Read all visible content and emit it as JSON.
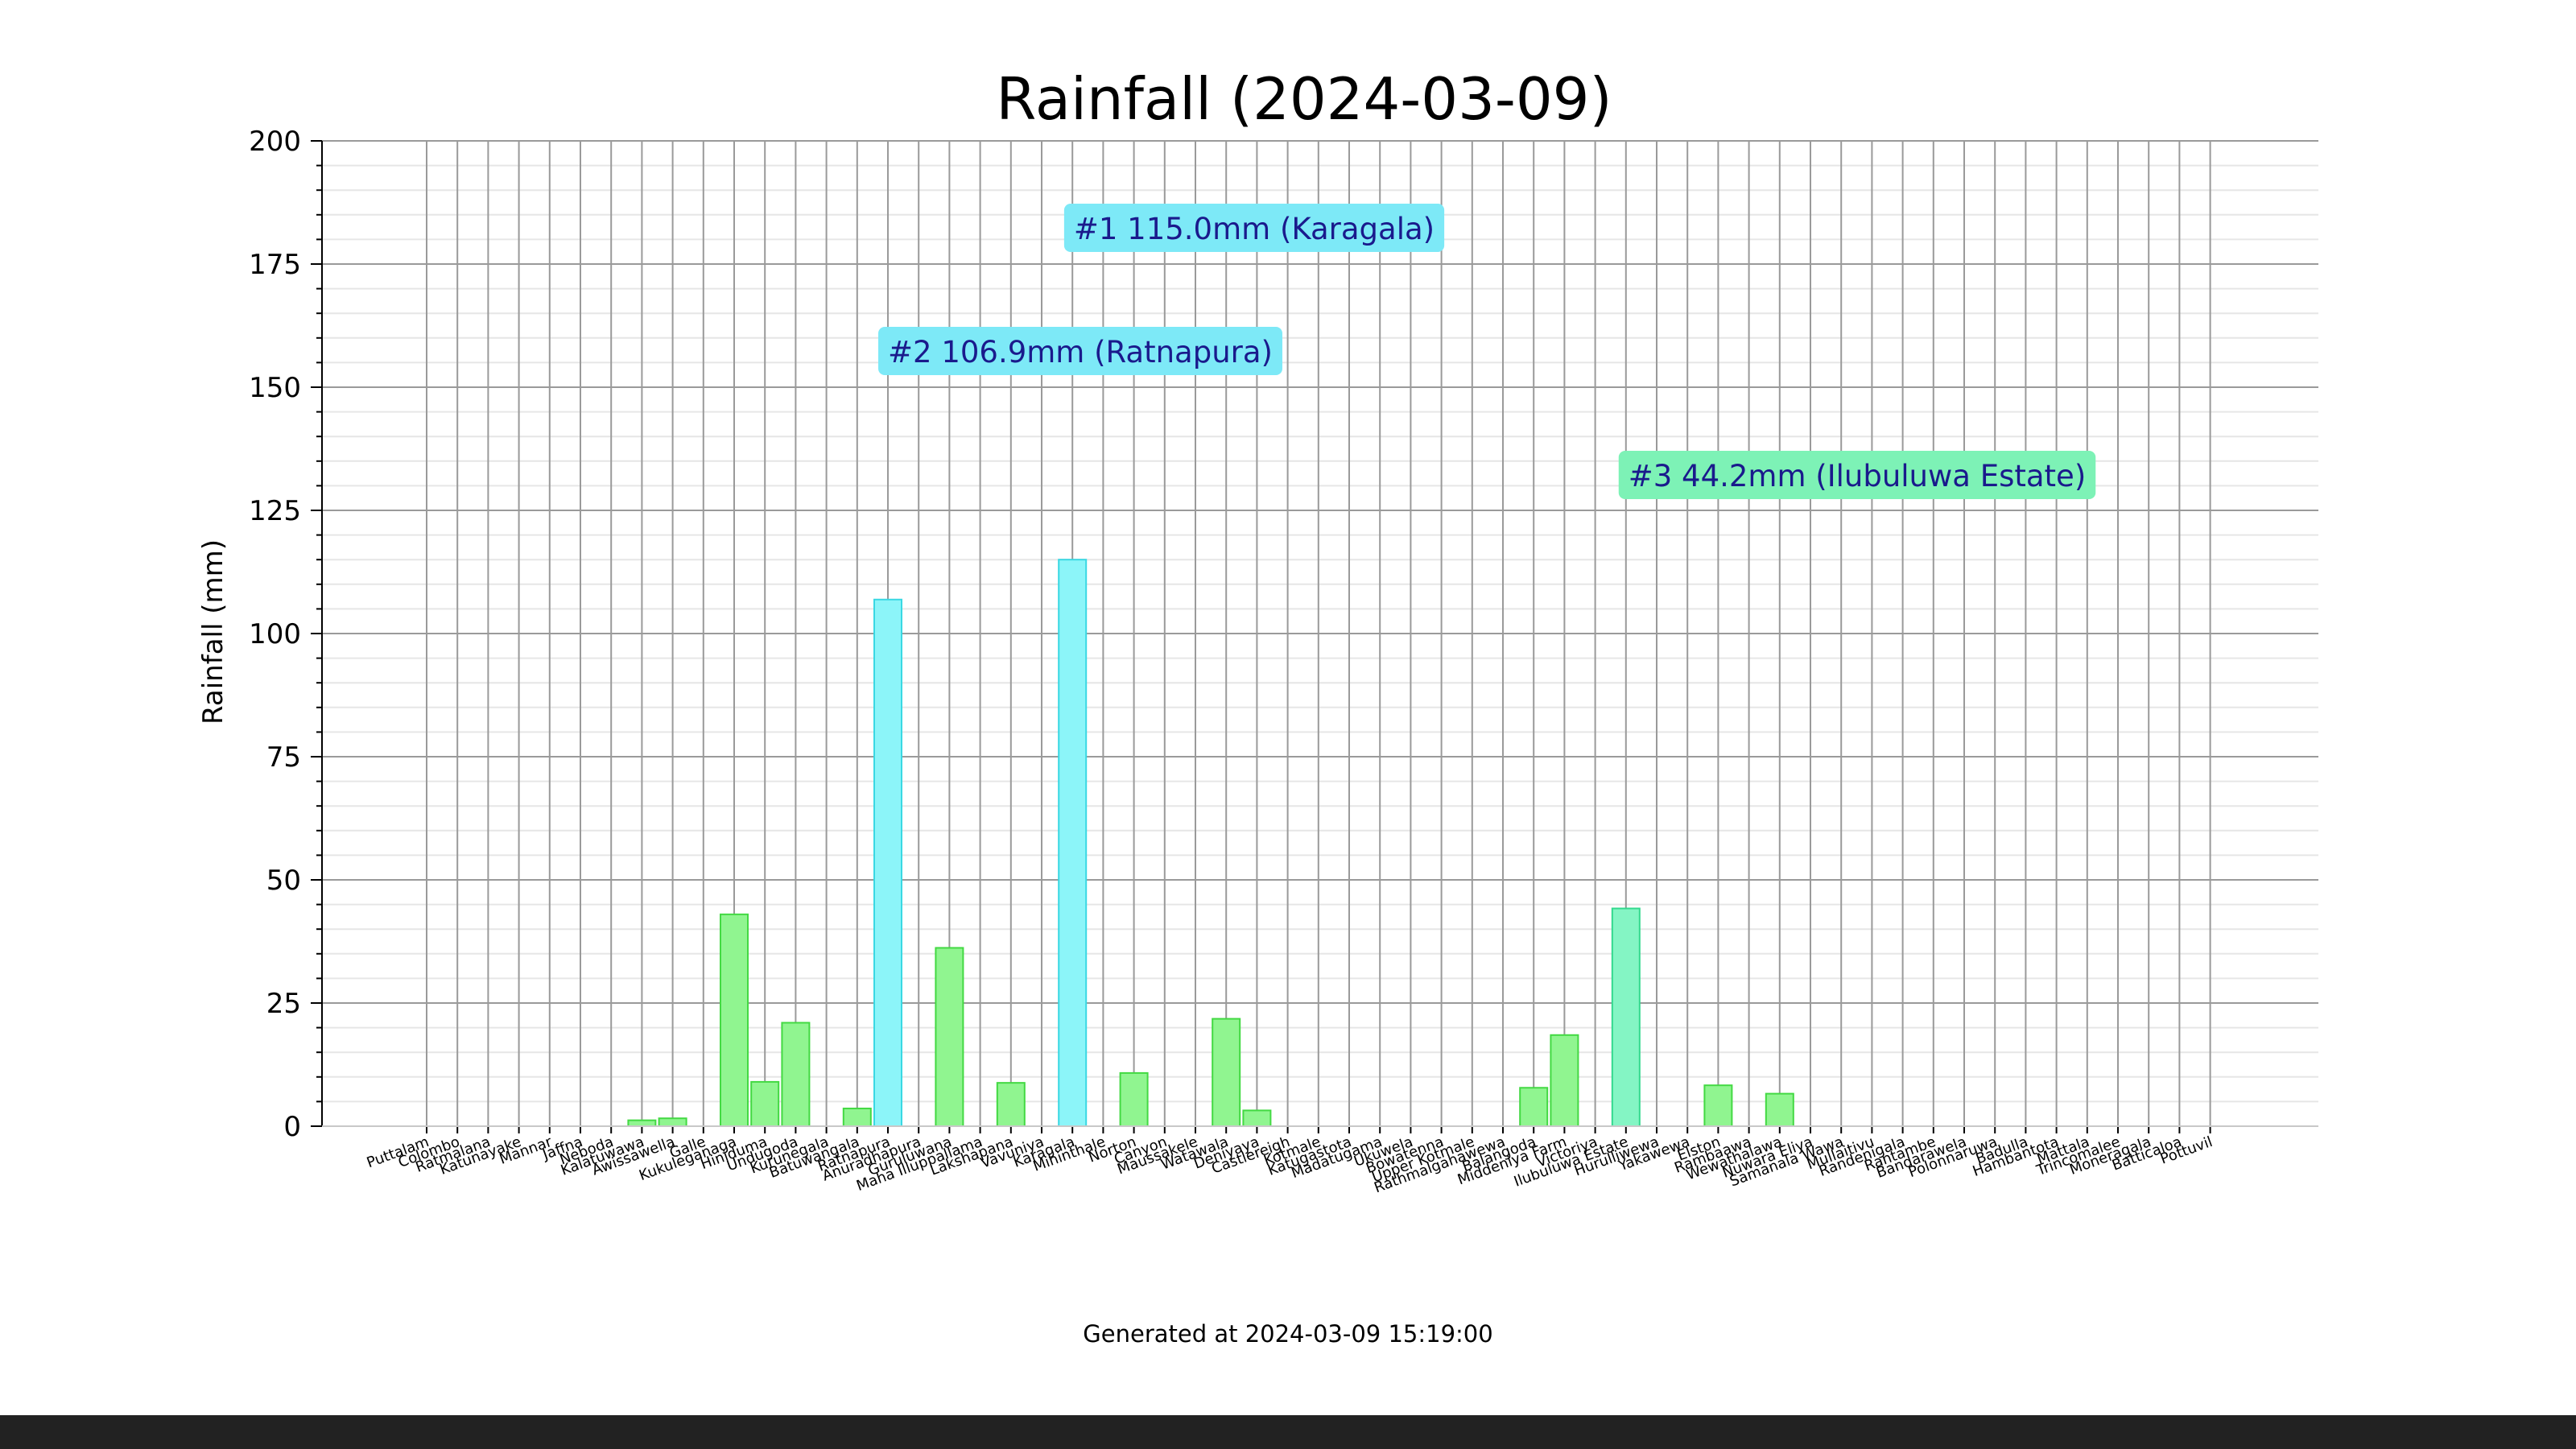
{
  "chart_data": {
    "type": "bar",
    "title": "Rainfall (2024-03-09)",
    "xlabel": "",
    "ylabel": "Rainfall (mm)",
    "ylim": [
      0,
      200
    ],
    "yticks": [
      0,
      25,
      50,
      75,
      100,
      125,
      150,
      175,
      200
    ],
    "grid": true,
    "footer": "Generated at 2024-03-09 15:19:00",
    "categories": [
      "Puttalam",
      "Colombo",
      "Ratmalana",
      "Katunayake",
      "Mannar",
      "Jaffna",
      "Neboda",
      "Kalatuwawa",
      "Awissawella",
      "Galle",
      "Kukuleganaga",
      "Hiniduma",
      "Undugoda",
      "Kurunegala",
      "Batuwangala",
      "Ratnapura",
      "Anuradhapura",
      "Guruluwana",
      "Maha Illuppallama",
      "Lakshapana",
      "Vavuniya",
      "Karagala",
      "Mihinthale",
      "Norton",
      "Canyon",
      "Maussakele",
      "Watawala",
      "Deniyaya",
      "Castlereigh",
      "Kotmale",
      "Katugastota",
      "Madatugama",
      "Ukuwela",
      "Bowatenna",
      "Upper Kotmale",
      "Rathmalgahawewa",
      "Balangoda",
      "Middeniya Farm",
      "Victoriya",
      "Ilubuluwa Estate",
      "Hurulliwewa",
      "Yakawewa",
      "Elston",
      "Rambaawa",
      "Wewathalawa",
      "Nuwara Eliya",
      "Samanala Wawa",
      "Mullaitivu",
      "Randenigala",
      "Rantambe",
      "Bandarawela",
      "Polonnaruwa",
      "Badulla",
      "Hambantota",
      "Mattala",
      "Trincomalee",
      "Moneragala",
      "Batticaloa",
      "Pottuvil"
    ],
    "values": [
      0,
      0,
      0,
      0,
      0,
      0,
      0,
      1.2,
      1.6,
      0,
      43.0,
      9.0,
      21.0,
      0,
      3.6,
      106.9,
      0,
      36.2,
      0,
      8.8,
      0,
      115.0,
      0,
      10.8,
      0,
      0,
      21.8,
      3.2,
      0,
      0,
      0,
      0,
      0,
      0,
      0,
      0,
      7.8,
      18.5,
      0,
      44.2,
      0,
      0,
      8.3,
      0,
      6.6,
      0,
      0,
      0,
      0,
      0,
      0,
      0,
      0,
      0,
      0,
      0,
      0,
      0,
      0
    ],
    "colors": {
      "default_fill": "#90f590",
      "default_edge": "#43d943",
      "top_fill": "#8cf5f9",
      "top_edge": "#3ad8e3",
      "third_fill": "#84f5c4",
      "third_edge": "#33d98e",
      "label_text": "#1a1a8c"
    },
    "top_labels": [
      {
        "text": "#1 115.0mm (Karagala)",
        "fill": "#7de9f7"
      },
      {
        "text": "#2 106.9mm (Ratnapura)",
        "fill": "#7de9f7"
      },
      {
        "text": "#3 44.2mm (Ilubuluwa Estate)",
        "fill": "#7df2b6"
      }
    ],
    "highlight": {
      "Karagala": "top",
      "Ratnapura": "top",
      "Ilubuluwa Estate": "third"
    }
  }
}
